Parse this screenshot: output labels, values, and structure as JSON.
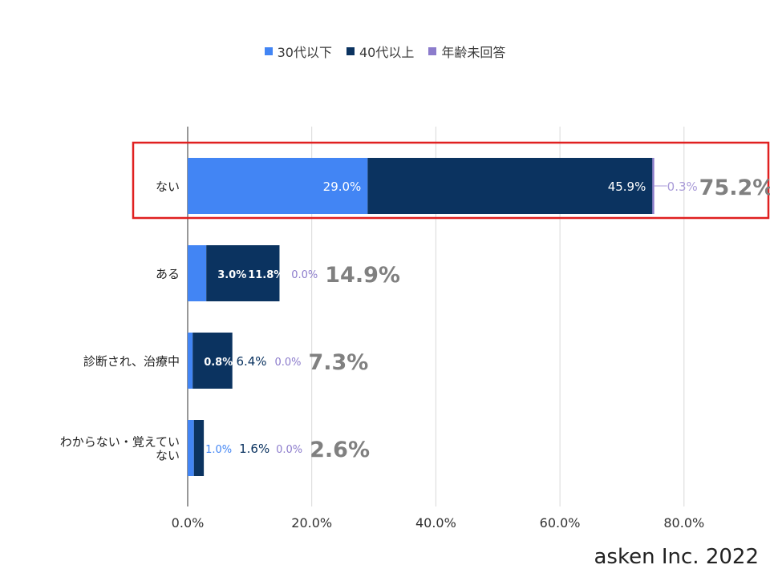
{
  "legend": [
    {
      "label": "30代以下",
      "color": "#4285f4"
    },
    {
      "label": "40代以上",
      "color": "#0b3360"
    },
    {
      "label": "年齢未回答",
      "color": "#8c7ccc"
    }
  ],
  "credit": "asken Inc. 2022",
  "chart_data": {
    "type": "bar",
    "orientation": "horizontal",
    "stacked": true,
    "categories": [
      "ない",
      "ある",
      "診断され、治療中",
      "わからない・覚えていない"
    ],
    "category_lines": [
      [
        "ない"
      ],
      [
        "ある"
      ],
      [
        "診断され、治療中"
      ],
      [
        "わからない・覚えてい",
        "ない"
      ]
    ],
    "series": [
      {
        "name": "30代以下",
        "values": [
          29.0,
          3.0,
          0.8,
          1.0
        ],
        "color": "#4285f4"
      },
      {
        "name": "40代以上",
        "values": [
          45.9,
          11.8,
          6.4,
          1.6
        ],
        "color": "#0b3360"
      },
      {
        "name": "年齢未回答",
        "values": [
          0.3,
          0.0,
          0.0,
          0.0
        ],
        "color": "#8c7ccc"
      }
    ],
    "totals": [
      75.2,
      14.9,
      7.3,
      2.6
    ],
    "value_labels": [
      [
        "29.0%",
        "45.9%",
        "0.3%"
      ],
      [
        "3.0%",
        "11.8%",
        "0.0%"
      ],
      [
        "0.8%",
        "6.4%",
        "0.0%"
      ],
      [
        "1.0%",
        "1.6%",
        "0.0%"
      ]
    ],
    "total_labels": [
      "75.2%",
      "14.9%",
      "7.3%",
      "2.6%"
    ],
    "xticks": [
      "0.0%",
      "20.0%",
      "40.0%",
      "60.0%",
      "80.0%"
    ],
    "xlim": [
      0,
      95
    ],
    "grid": true,
    "legend_position": "top",
    "highlight_category": "ない",
    "highlight_color": "#e02020"
  }
}
